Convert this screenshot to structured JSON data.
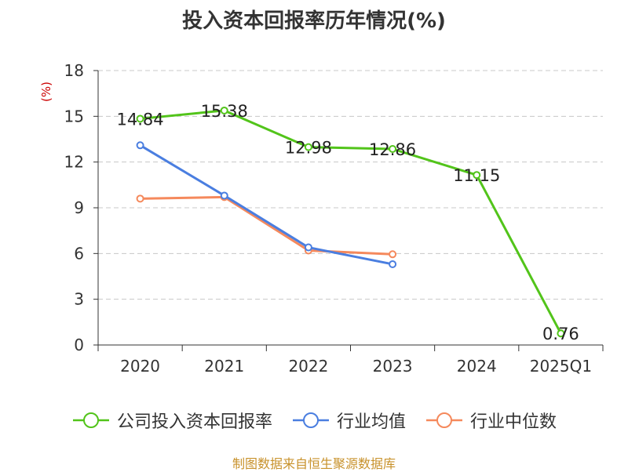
{
  "title": "投入资本回报率历年情况(%)",
  "source": "制图数据来自恒生聚源数据库",
  "colors": {
    "company": "#52c41a",
    "industry_avg": "#4a7ee0",
    "industry_median": "#f5895c",
    "ylabel": "#cc0000",
    "grid": "#c8c8c8",
    "axis": "#333333"
  },
  "chart_data": {
    "type": "line",
    "title": "投入资本回报率历年情况(%)",
    "ylabel": "(%)",
    "xlabel": "",
    "categories": [
      "2020",
      "2021",
      "2022",
      "2023",
      "2024",
      "2025Q1"
    ],
    "ylim": [
      0,
      18
    ],
    "yticks": [
      0,
      3,
      6,
      9,
      12,
      15,
      18
    ],
    "grid": true,
    "legend_position": "bottom",
    "series": [
      {
        "name": "公司投入资本回报率",
        "key": "company",
        "values": [
          14.84,
          15.38,
          12.98,
          12.86,
          11.15,
          0.76
        ],
        "labels": [
          "14.84",
          "15.38",
          "12.98",
          "12.86",
          "11.15",
          "0.76"
        ]
      },
      {
        "name": "行业均值",
        "key": "industry_avg",
        "values": [
          13.1,
          9.8,
          6.4,
          5.3,
          null,
          null
        ]
      },
      {
        "name": "行业中位数",
        "key": "industry_median",
        "values": [
          9.6,
          9.7,
          6.2,
          5.95,
          null,
          null
        ]
      }
    ]
  }
}
